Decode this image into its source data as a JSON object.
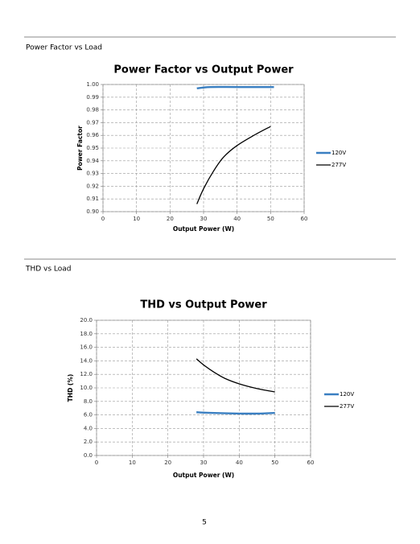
{
  "sections": [
    {
      "heading": "Power Factor vs Load"
    },
    {
      "heading": "THD vs Load"
    }
  ],
  "page_number": "5",
  "chart_data": [
    {
      "type": "line",
      "title": "Power Factor vs Output Power",
      "x_label": "Output Power (W)",
      "y_label": "Power Factor",
      "xlim": [
        0,
        60
      ],
      "xticks": [
        0,
        10,
        20,
        30,
        40,
        50,
        60
      ],
      "ylim": [
        0.9,
        1.0
      ],
      "yticks": [
        {
          "value": 0.9,
          "label": "0.90"
        },
        0.91,
        0.92,
        0.93,
        0.94,
        0.95,
        0.96,
        0.97,
        0.98,
        0.99,
        {
          "value": 1.0,
          "label": "1.00"
        }
      ],
      "grid": true,
      "legend": "right",
      "series": [
        {
          "name": "120V",
          "color": "#3a7fc1",
          "x": [
            28,
            32,
            40,
            51
          ],
          "values": [
            0.997,
            0.998,
            0.998,
            0.998
          ]
        },
        {
          "name": "277V",
          "color": "#000000",
          "x": [
            28,
            30,
            33,
            36,
            40,
            45,
            50
          ],
          "values": [
            0.906,
            0.918,
            0.932,
            0.943,
            0.952,
            0.96,
            0.967
          ]
        }
      ]
    },
    {
      "type": "line",
      "title": "THD vs Output Power",
      "x_label": "Output Power (W)",
      "y_label": "THD (%)",
      "xlim": [
        0,
        60
      ],
      "xticks": [
        0,
        10,
        20,
        30,
        40,
        50,
        60
      ],
      "ylim": [
        0,
        20
      ],
      "yticks": [
        {
          "value": 0,
          "label": "0.0"
        },
        {
          "value": 2,
          "label": "2.0"
        },
        {
          "value": 4,
          "label": "4.0"
        },
        {
          "value": 6,
          "label": "6.0"
        },
        {
          "value": 8,
          "label": "8.0"
        },
        {
          "value": 10,
          "label": "10.0"
        },
        {
          "value": 12,
          "label": "12.0"
        },
        {
          "value": 14,
          "label": "14.0"
        },
        {
          "value": 16,
          "label": "16.0"
        },
        {
          "value": 18,
          "label": "18.0"
        },
        {
          "value": 20,
          "label": "20.0"
        }
      ],
      "grid": true,
      "legend": "right",
      "series": [
        {
          "name": "120V",
          "color": "#3a7fc1",
          "x": [
            28,
            32,
            40,
            45,
            50
          ],
          "values": [
            6.4,
            6.3,
            6.2,
            6.2,
            6.3
          ]
        },
        {
          "name": "277V",
          "color": "#000000",
          "x": [
            28,
            30,
            33,
            36,
            40,
            45,
            50
          ],
          "values": [
            14.3,
            13.4,
            12.3,
            11.4,
            10.6,
            9.9,
            9.4
          ]
        }
      ]
    }
  ]
}
